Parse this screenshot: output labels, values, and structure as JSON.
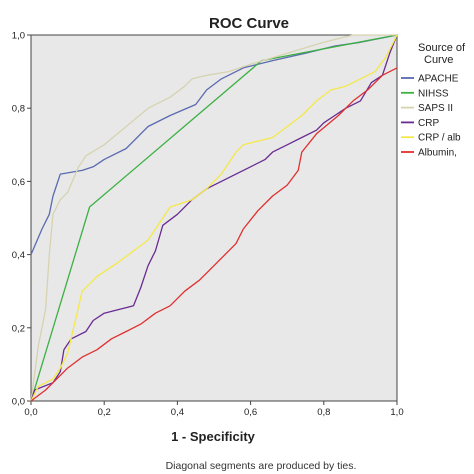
{
  "chart_data": {
    "type": "line",
    "title": "ROC Curve",
    "xlabel": "1 - Specificity",
    "ylabel": "",
    "xlim": [
      0,
      1
    ],
    "ylim": [
      0,
      1
    ],
    "x_ticks": [
      "0,0",
      "0,2",
      "0,4",
      "0,6",
      "0,8",
      "1,0"
    ],
    "y_ticks": [
      "0,0",
      "0,2",
      "0,4",
      "0,6",
      "0,8",
      "1,0"
    ],
    "grid": false,
    "legend_title": [
      "Source of",
      "Curve"
    ],
    "legend_position": "right",
    "footnote": "Diagonal segments are produced by ties.",
    "series": [
      {
        "name": "APACHE",
        "color": "#5b6ab0",
        "points": [
          [
            0,
            0.4
          ],
          [
            0.03,
            0.47
          ],
          [
            0.05,
            0.51
          ],
          [
            0.06,
            0.56
          ],
          [
            0.08,
            0.62
          ],
          [
            0.14,
            0.63
          ],
          [
            0.17,
            0.64
          ],
          [
            0.2,
            0.66
          ],
          [
            0.26,
            0.69
          ],
          [
            0.32,
            0.75
          ],
          [
            0.38,
            0.78
          ],
          [
            0.45,
            0.81
          ],
          [
            0.48,
            0.85
          ],
          [
            0.52,
            0.88
          ],
          [
            0.58,
            0.91
          ],
          [
            0.66,
            0.93
          ],
          [
            0.75,
            0.95
          ],
          [
            0.83,
            0.97
          ],
          [
            0.9,
            0.98
          ],
          [
            1.0,
            1.0
          ]
        ]
      },
      {
        "name": "NIHSS",
        "color": "#3cb043",
        "points": [
          [
            0,
            0
          ],
          [
            0.16,
            0.53
          ],
          [
            0.63,
            0.93
          ],
          [
            1.0,
            1.0
          ]
        ]
      },
      {
        "name": "SAPS II",
        "color": "#d6d3b0",
        "points": [
          [
            0,
            0
          ],
          [
            0.02,
            0.15
          ],
          [
            0.04,
            0.25
          ],
          [
            0.05,
            0.4
          ],
          [
            0.06,
            0.51
          ],
          [
            0.08,
            0.55
          ],
          [
            0.1,
            0.57
          ],
          [
            0.13,
            0.64
          ],
          [
            0.15,
            0.67
          ],
          [
            0.2,
            0.7
          ],
          [
            0.26,
            0.75
          ],
          [
            0.32,
            0.8
          ],
          [
            0.38,
            0.83
          ],
          [
            0.42,
            0.86
          ],
          [
            0.44,
            0.88
          ],
          [
            0.48,
            0.89
          ],
          [
            0.54,
            0.9
          ],
          [
            0.6,
            0.92
          ],
          [
            0.7,
            0.95
          ],
          [
            0.8,
            0.98
          ],
          [
            0.88,
            1.0
          ],
          [
            1.0,
            1.0
          ]
        ]
      },
      {
        "name": "CRP",
        "color": "#6a2c91",
        "points": [
          [
            0,
            0
          ],
          [
            0.01,
            0.03
          ],
          [
            0.06,
            0.05
          ],
          [
            0.08,
            0.08
          ],
          [
            0.09,
            0.14
          ],
          [
            0.11,
            0.17
          ],
          [
            0.15,
            0.19
          ],
          [
            0.17,
            0.22
          ],
          [
            0.2,
            0.24
          ],
          [
            0.24,
            0.25
          ],
          [
            0.28,
            0.26
          ],
          [
            0.3,
            0.31
          ],
          [
            0.32,
            0.37
          ],
          [
            0.34,
            0.41
          ],
          [
            0.36,
            0.48
          ],
          [
            0.4,
            0.51
          ],
          [
            0.44,
            0.55
          ],
          [
            0.48,
            0.58
          ],
          [
            0.52,
            0.6
          ],
          [
            0.56,
            0.62
          ],
          [
            0.6,
            0.64
          ],
          [
            0.64,
            0.66
          ],
          [
            0.66,
            0.68
          ],
          [
            0.7,
            0.7
          ],
          [
            0.74,
            0.72
          ],
          [
            0.78,
            0.74
          ],
          [
            0.8,
            0.76
          ],
          [
            0.83,
            0.78
          ],
          [
            0.86,
            0.8
          ],
          [
            0.9,
            0.82
          ],
          [
            0.93,
            0.87
          ],
          [
            0.96,
            0.89
          ],
          [
            0.98,
            0.95
          ],
          [
            1.0,
            1.0
          ]
        ]
      },
      {
        "name": "CRP / alb",
        "color": "#f5e84a",
        "points": [
          [
            0,
            0
          ],
          [
            0.02,
            0.04
          ],
          [
            0.06,
            0.06
          ],
          [
            0.08,
            0.09
          ],
          [
            0.1,
            0.13
          ],
          [
            0.14,
            0.3
          ],
          [
            0.18,
            0.34
          ],
          [
            0.24,
            0.38
          ],
          [
            0.28,
            0.41
          ],
          [
            0.32,
            0.44
          ],
          [
            0.36,
            0.5
          ],
          [
            0.38,
            0.53
          ],
          [
            0.44,
            0.55
          ],
          [
            0.48,
            0.58
          ],
          [
            0.52,
            0.62
          ],
          [
            0.56,
            0.68
          ],
          [
            0.58,
            0.7
          ],
          [
            0.62,
            0.71
          ],
          [
            0.66,
            0.72
          ],
          [
            0.7,
            0.75
          ],
          [
            0.74,
            0.78
          ],
          [
            0.78,
            0.82
          ],
          [
            0.82,
            0.85
          ],
          [
            0.86,
            0.86
          ],
          [
            0.9,
            0.88
          ],
          [
            0.94,
            0.9
          ],
          [
            0.97,
            0.94
          ],
          [
            1.0,
            1.0
          ]
        ]
      },
      {
        "name": "Albumin,",
        "color": "#e03030",
        "points": [
          [
            0,
            0
          ],
          [
            0.04,
            0.03
          ],
          [
            0.06,
            0.05
          ],
          [
            0.1,
            0.09
          ],
          [
            0.14,
            0.12
          ],
          [
            0.18,
            0.14
          ],
          [
            0.22,
            0.17
          ],
          [
            0.26,
            0.19
          ],
          [
            0.3,
            0.21
          ],
          [
            0.34,
            0.24
          ],
          [
            0.38,
            0.26
          ],
          [
            0.42,
            0.3
          ],
          [
            0.46,
            0.33
          ],
          [
            0.48,
            0.35
          ],
          [
            0.52,
            0.39
          ],
          [
            0.56,
            0.43
          ],
          [
            0.58,
            0.47
          ],
          [
            0.62,
            0.52
          ],
          [
            0.66,
            0.56
          ],
          [
            0.7,
            0.59
          ],
          [
            0.73,
            0.63
          ],
          [
            0.74,
            0.68
          ],
          [
            0.78,
            0.73
          ],
          [
            0.84,
            0.78
          ],
          [
            0.88,
            0.82
          ],
          [
            0.92,
            0.85
          ],
          [
            0.96,
            0.89
          ],
          [
            1.0,
            0.91
          ]
        ]
      }
    ]
  }
}
